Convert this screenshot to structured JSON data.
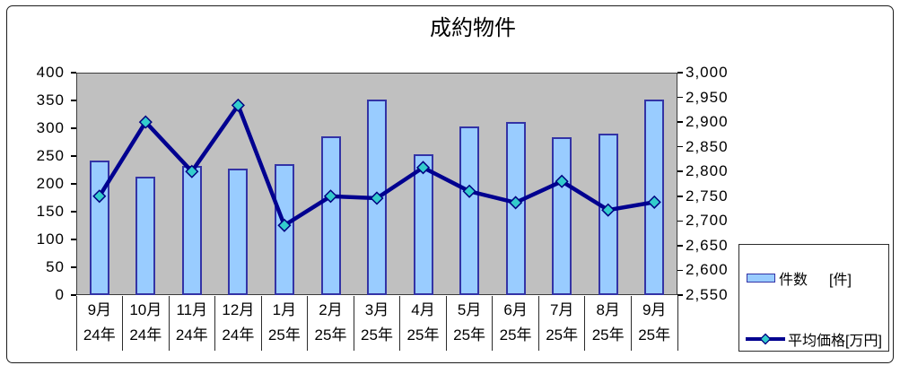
{
  "chart_data": {
    "type": "combo_bar_line",
    "title": "成約物件",
    "months": [
      "9月",
      "10月",
      "11月",
      "12月",
      "1月",
      "2月",
      "3月",
      "4月",
      "5月",
      "6月",
      "7月",
      "8月",
      "9月"
    ],
    "years": [
      "24年",
      "24年",
      "24年",
      "24年",
      "25年",
      "25年",
      "25年",
      "25年",
      "25年",
      "25年",
      "25年",
      "25年",
      "25年"
    ],
    "series": [
      {
        "name": "件数",
        "unit": "[件]",
        "type": "bar",
        "axis": "left",
        "values": [
          242,
          213,
          232,
          228,
          235,
          286,
          351,
          253,
          304,
          312,
          284,
          291,
          351
        ]
      },
      {
        "name": "平均価格[万円]",
        "type": "line",
        "axis": "right",
        "values": [
          2750,
          2900,
          2800,
          2934,
          2691,
          2750,
          2746,
          2808,
          2760,
          2737,
          2780,
          2722,
          2738
        ]
      }
    ],
    "left_axis": {
      "min": 0,
      "max": 400,
      "step": 50,
      "ticks": [
        "400",
        "350",
        "300",
        "250",
        "200",
        "150",
        "100",
        "50",
        "0"
      ]
    },
    "right_axis": {
      "min": 2550,
      "max": 3000,
      "step": 50,
      "ticks": [
        "3,000",
        "2,950",
        "2,900",
        "2,850",
        "2,800",
        "2,750",
        "2,700",
        "2,650",
        "2,600",
        "2,550"
      ]
    },
    "grid": false,
    "legend_position": "bottom-right"
  },
  "colors": {
    "bar_fill": "#99ccff",
    "bar_border": "#3333a6",
    "line": "#000090",
    "marker_fill": "#33cccc",
    "marker_border": "#000080",
    "plot_bg": "#c0c0c0",
    "axis_text": "#000000"
  }
}
